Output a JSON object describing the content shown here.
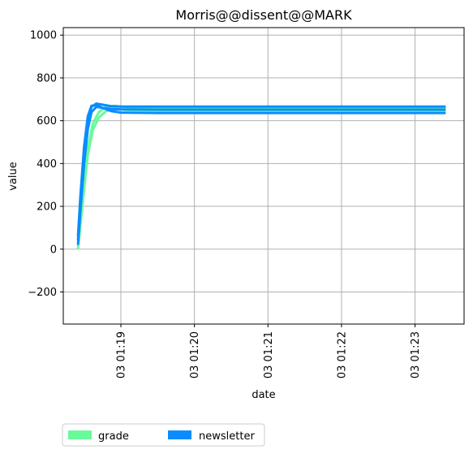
{
  "chart_data": {
    "type": "line",
    "title": "Morris@@dissent@@MARK",
    "xlabel": "date",
    "ylabel": "value",
    "x_unit": "minute of day 03",
    "xlim": [
      "03 01:18:13",
      "03 01:23:40"
    ],
    "ylim": [
      -350,
      1035
    ],
    "yticks": [
      -200,
      0,
      200,
      400,
      600,
      800,
      1000
    ],
    "xticks": [
      "03 01:19",
      "03 01:20",
      "03 01:21",
      "03 01:22",
      "03 01:23"
    ],
    "grid": true,
    "legend_position": "bottom-left, below chart",
    "series": [
      {
        "name": "grade",
        "color": "#69fa9a",
        "traces": [
          {
            "x": [
              "01:18:25",
              "01:18:27",
              "01:18:30",
              "01:18:33",
              "01:18:37",
              "01:18:42",
              "01:18:48",
              "01:18:55",
              "01:19:05",
              "01:19:30",
              "01:20:30",
              "01:21:30",
              "01:22:30",
              "01:23:25"
            ],
            "y": [
              0,
              110,
              280,
              440,
              555,
              615,
              645,
              655,
              650,
              648,
              648,
              648,
              648,
              648
            ]
          },
          {
            "x": [
              "01:18:25",
              "01:18:27",
              "01:18:30",
              "01:18:33",
              "01:18:37",
              "01:18:42",
              "01:18:48",
              "01:18:55",
              "01:19:05",
              "01:19:30",
              "01:20:30",
              "01:21:30",
              "01:22:30",
              "01:23:25"
            ],
            "y": [
              10,
              130,
              310,
              470,
              585,
              640,
              665,
              670,
              662,
              660,
              660,
              660,
              660,
              660
            ]
          }
        ]
      },
      {
        "name": "newsletter",
        "color": "#0a8cff",
        "traces": [
          {
            "x": [
              "01:18:25",
              "01:18:27",
              "01:18:30",
              "01:18:33",
              "01:18:36",
              "01:18:40",
              "01:18:45",
              "01:18:52",
              "01:19:00",
              "01:19:30",
              "01:20:30",
              "01:21:30",
              "01:22:30",
              "01:23:25"
            ],
            "y": [
              20,
              180,
              400,
              560,
              640,
              665,
              660,
              645,
              638,
              636,
              636,
              636,
              636,
              636
            ]
          },
          {
            "x": [
              "01:18:25",
              "01:18:27",
              "01:18:30",
              "01:18:33",
              "01:18:36",
              "01:18:40",
              "01:18:45",
              "01:18:52",
              "01:19:00",
              "01:19:30",
              "01:20:30",
              "01:21:30",
              "01:22:30",
              "01:23:25"
            ],
            "y": [
              40,
              220,
              450,
              600,
              665,
              680,
              675,
              668,
              666,
              666,
              666,
              666,
              666,
              666
            ]
          },
          {
            "x": [
              "01:18:25",
              "01:18:27",
              "01:18:30",
              "01:18:33",
              "01:18:36",
              "01:18:40",
              "01:18:45",
              "01:18:52",
              "01:19:00",
              "01:19:30",
              "01:20:30",
              "01:21:30",
              "01:22:30",
              "01:23:25"
            ],
            "y": [
              60,
              250,
              480,
              620,
              670,
              672,
              660,
              655,
              653,
              652,
              652,
              652,
              652,
              652
            ]
          }
        ]
      }
    ]
  }
}
